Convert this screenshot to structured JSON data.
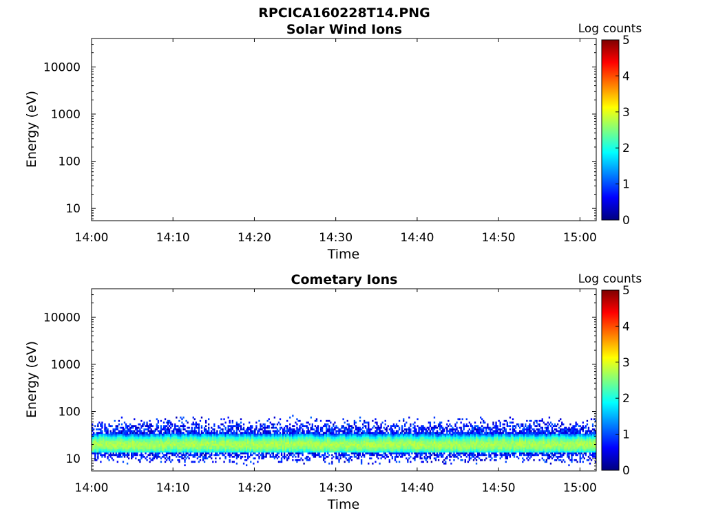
{
  "figure_title": "RPCICA160228T14.PNG",
  "colorbar": {
    "label": "Log counts",
    "range": [
      0,
      5
    ],
    "ticks": [
      "0",
      "1",
      "2",
      "3",
      "4",
      "5"
    ],
    "colormap": "jet",
    "colormap_stops": [
      "#00007f",
      "#0000ff",
      "#007fff",
      "#00ffff",
      "#7fff7f",
      "#ffff00",
      "#ff7f00",
      "#ff0000",
      "#7f0000"
    ]
  },
  "chart_data": [
    {
      "type": "heatmap",
      "title": "Solar Wind Ions",
      "xlabel": "Time",
      "ylabel": "Energy (eV)",
      "x_range": [
        "14:00",
        "15:02"
      ],
      "x_ticks": [
        "14:00",
        "14:10",
        "14:20",
        "14:30",
        "14:40",
        "14:50",
        "15:00"
      ],
      "y_scale": "log",
      "y_range": [
        5.5,
        40000
      ],
      "y_ticks": [
        "10",
        "100",
        "1000",
        "10000"
      ],
      "color_range": [
        0,
        5
      ],
      "signal": null
    },
    {
      "type": "heatmap",
      "title": "Cometary Ions",
      "xlabel": "Time",
      "ylabel": "Energy (eV)",
      "x_range": [
        "14:00",
        "15:02"
      ],
      "x_ticks": [
        "14:00",
        "14:10",
        "14:20",
        "14:30",
        "14:40",
        "14:50",
        "15:00"
      ],
      "y_scale": "log",
      "y_range": [
        5.5,
        40000
      ],
      "y_ticks": [
        "10",
        "100",
        "1000",
        "10000"
      ],
      "color_range": [
        0,
        5
      ],
      "signal": {
        "time_span": [
          "14:00",
          "15:02"
        ],
        "energy_span_eV": [
          7,
          85
        ],
        "peak_energy_eV": 20,
        "peak_log_counts": 2.9,
        "core_band_eV": [
          14,
          35
        ]
      }
    }
  ]
}
